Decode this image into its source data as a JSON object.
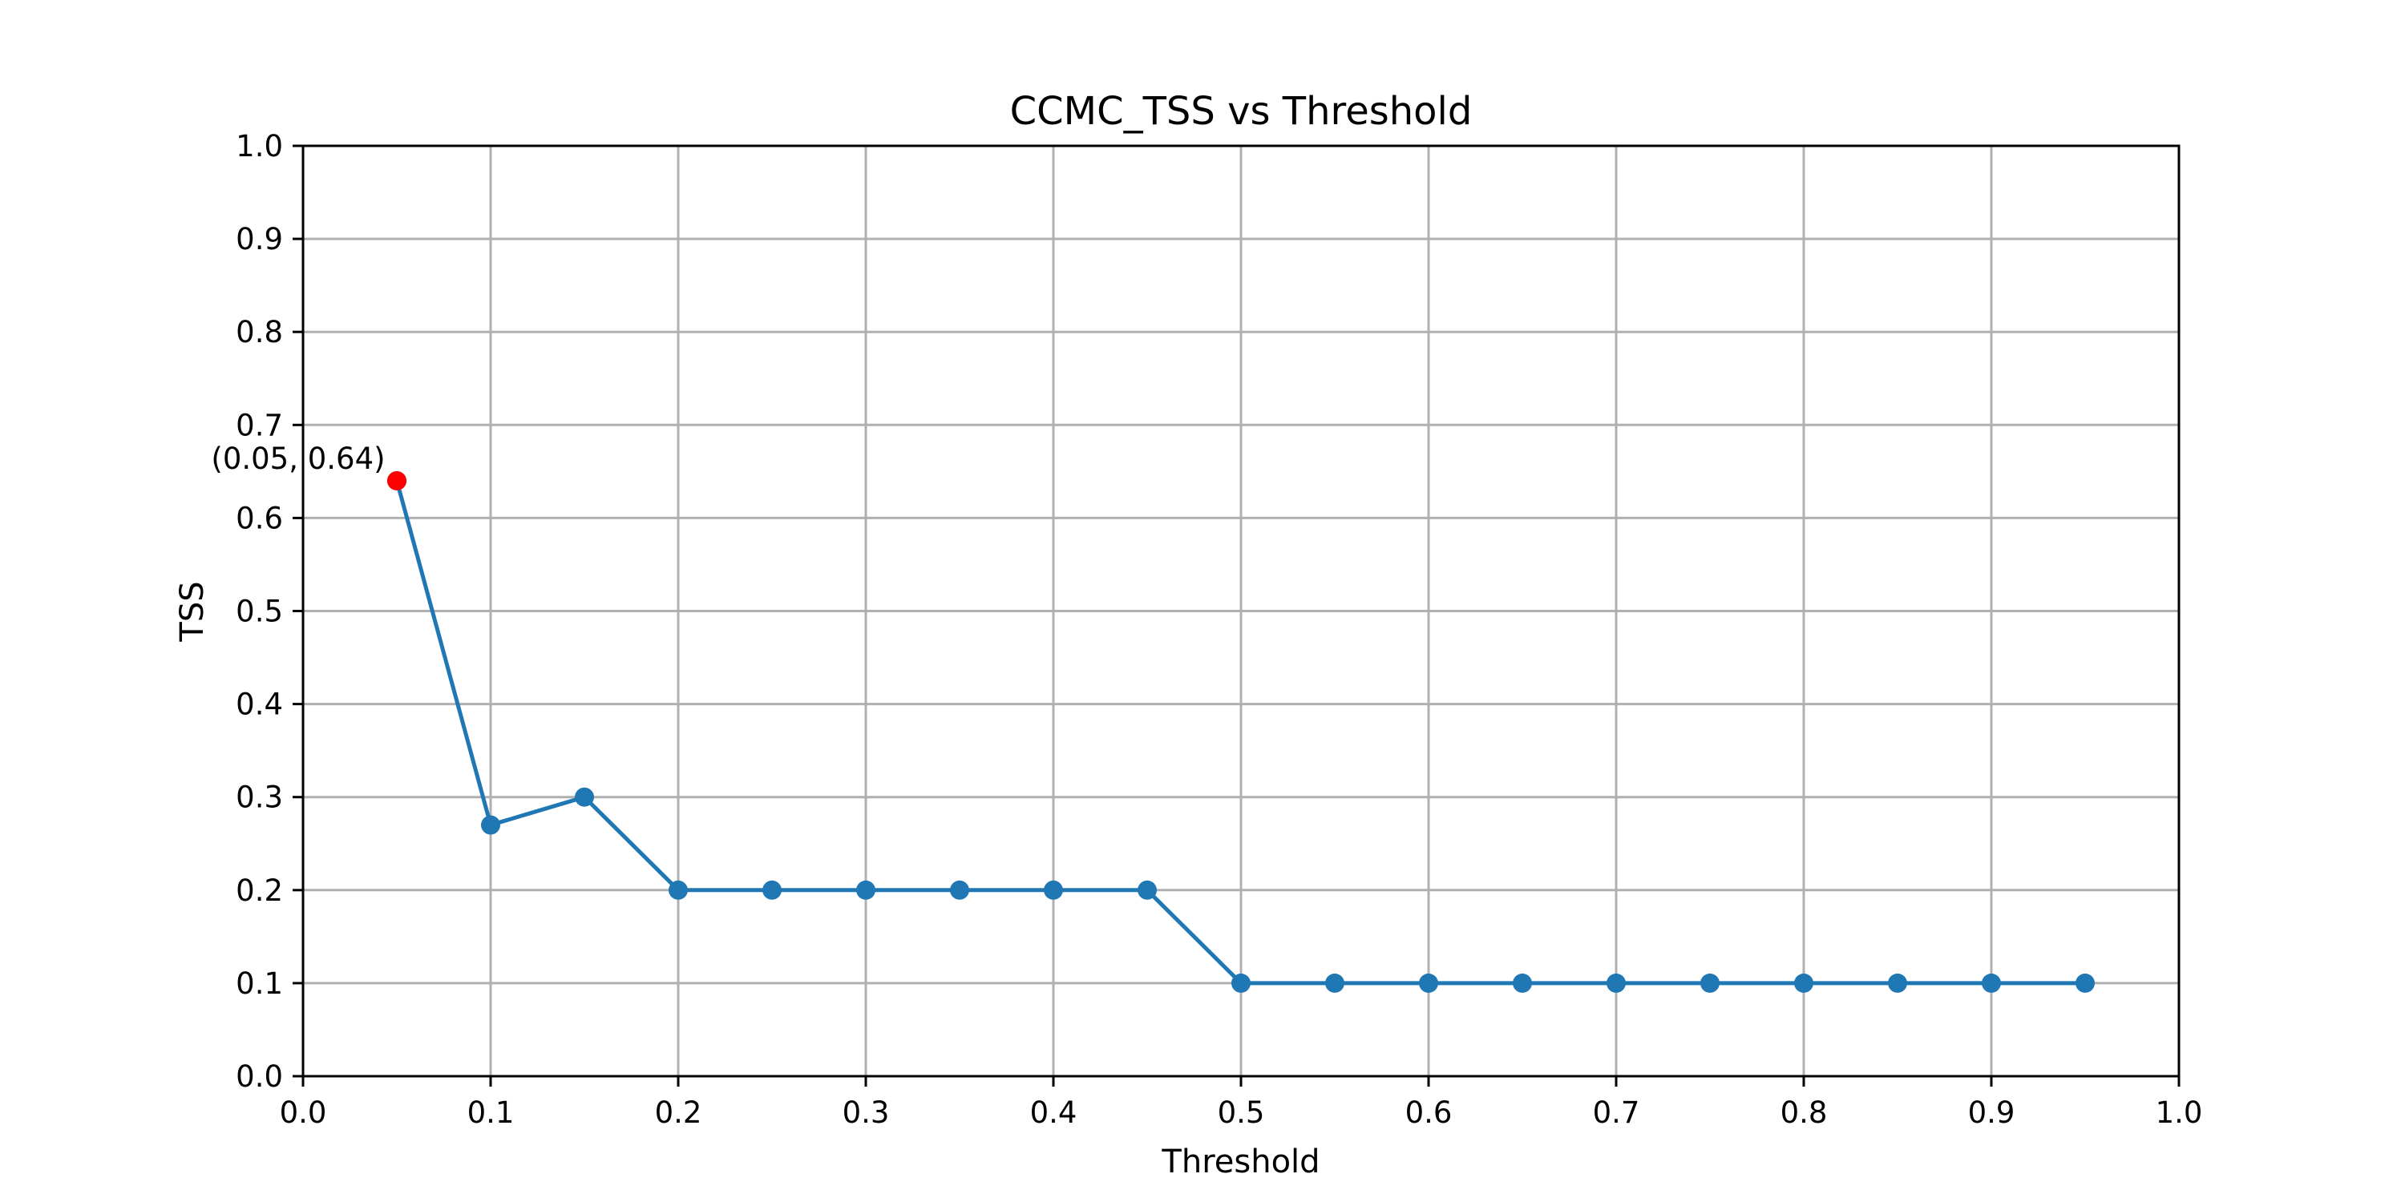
{
  "chart_data": {
    "type": "line",
    "title": "CCMC_TSS vs Threshold",
    "xlabel": "Threshold",
    "ylabel": "TSS",
    "xlim": [
      0.0,
      1.0
    ],
    "ylim": [
      0.0,
      1.0
    ],
    "grid": true,
    "xticks": [
      "0.0",
      "0.1",
      "0.2",
      "0.3",
      "0.4",
      "0.5",
      "0.6",
      "0.7",
      "0.8",
      "0.9",
      "1.0"
    ],
    "yticks": [
      "0.0",
      "0.1",
      "0.2",
      "0.3",
      "0.4",
      "0.5",
      "0.6",
      "0.7",
      "0.8",
      "0.9",
      "1.0"
    ],
    "series": [
      {
        "color": "#1f77b4",
        "x": [
          0.05,
          0.1,
          0.15,
          0.2,
          0.25,
          0.3,
          0.35,
          0.4,
          0.45,
          0.5,
          0.55,
          0.6,
          0.65,
          0.7,
          0.75,
          0.8,
          0.85,
          0.9,
          0.95
        ],
        "y": [
          0.64,
          0.27,
          0.3,
          0.2,
          0.2,
          0.2,
          0.2,
          0.2,
          0.2,
          0.1,
          0.1,
          0.1,
          0.1,
          0.1,
          0.1,
          0.1,
          0.1,
          0.1,
          0.1
        ]
      }
    ],
    "highlight": {
      "x": 0.05,
      "y": 0.64,
      "color": "#ff0000",
      "label": "(0.05, 0.64)"
    }
  }
}
